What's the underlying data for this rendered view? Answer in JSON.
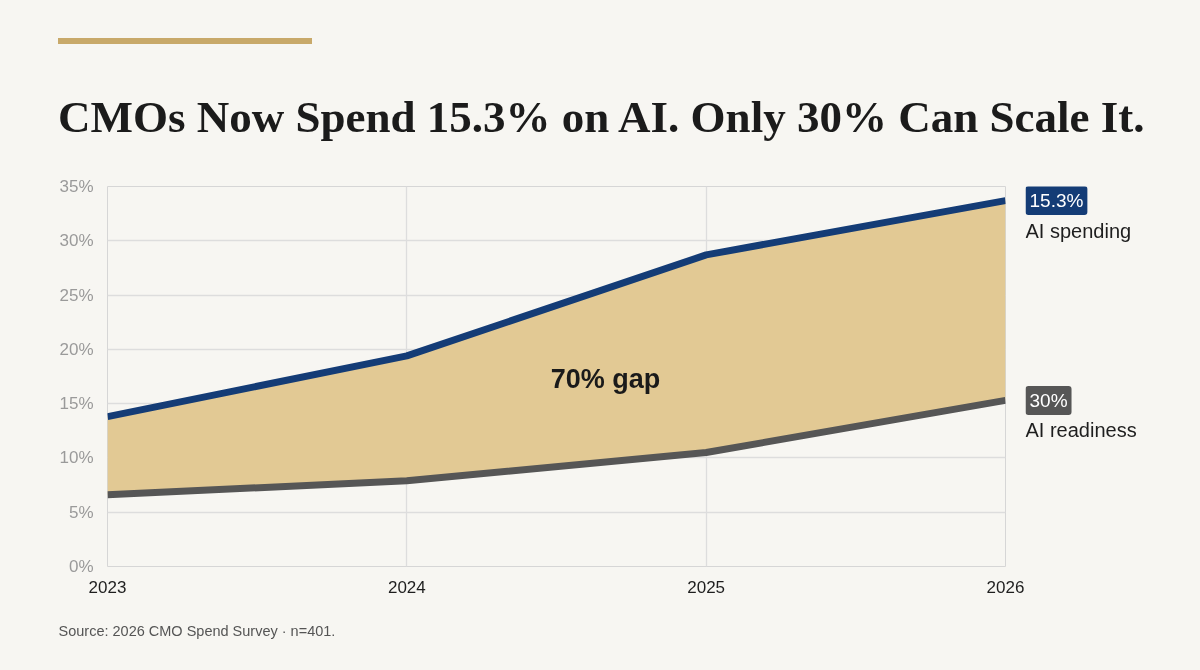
{
  "chart_data": {
    "type": "line",
    "title": "CMOs Now Spend 15.3% on AI. Only 30% Can Scale It.",
    "x": [
      2023,
      2024,
      2025,
      2026
    ],
    "series": [
      {
        "name": "AI spending",
        "color": "#143c76",
        "values": [
          13.8,
          19.4,
          28.7,
          33.7
        ],
        "lower": [
          6.6,
          7.9,
          10.5,
          15.3
        ],
        "upper": [
          13.8,
          19.4,
          28.7,
          33.7
        ]
      },
      {
        "name": "AI readiness",
        "color": "#565656",
        "values": [
          6.6,
          7.9,
          10.5,
          15.3
        ]
      }
    ],
    "xlim": [
      2023,
      2026
    ],
    "xticks": [
      2023,
      2024,
      2025,
      2026
    ],
    "ylim": [
      0,
      35
    ],
    "yticks": [
      {
        "value": 0,
        "label": "0%"
      },
      {
        "value": 5,
        "label": "5%"
      },
      {
        "value": 10,
        "label": "10%"
      },
      {
        "value": 15,
        "label": "15%"
      },
      {
        "value": 20,
        "label": "20%"
      },
      {
        "value": 25,
        "label": "25%"
      },
      {
        "value": 30,
        "label": "30%"
      },
      {
        "value": 35,
        "label": "35%"
      }
    ],
    "grid": true,
    "legend": "right",
    "annotations": [
      "70% gap",
      {
        "text": "15.3%",
        "x": 2026,
        "y": 33.7
      },
      {
        "text": "30%",
        "x": 2026,
        "y": 15.3
      },
      "Source: 2026 CMO Spend Survey · n=401."
    ]
  }
}
